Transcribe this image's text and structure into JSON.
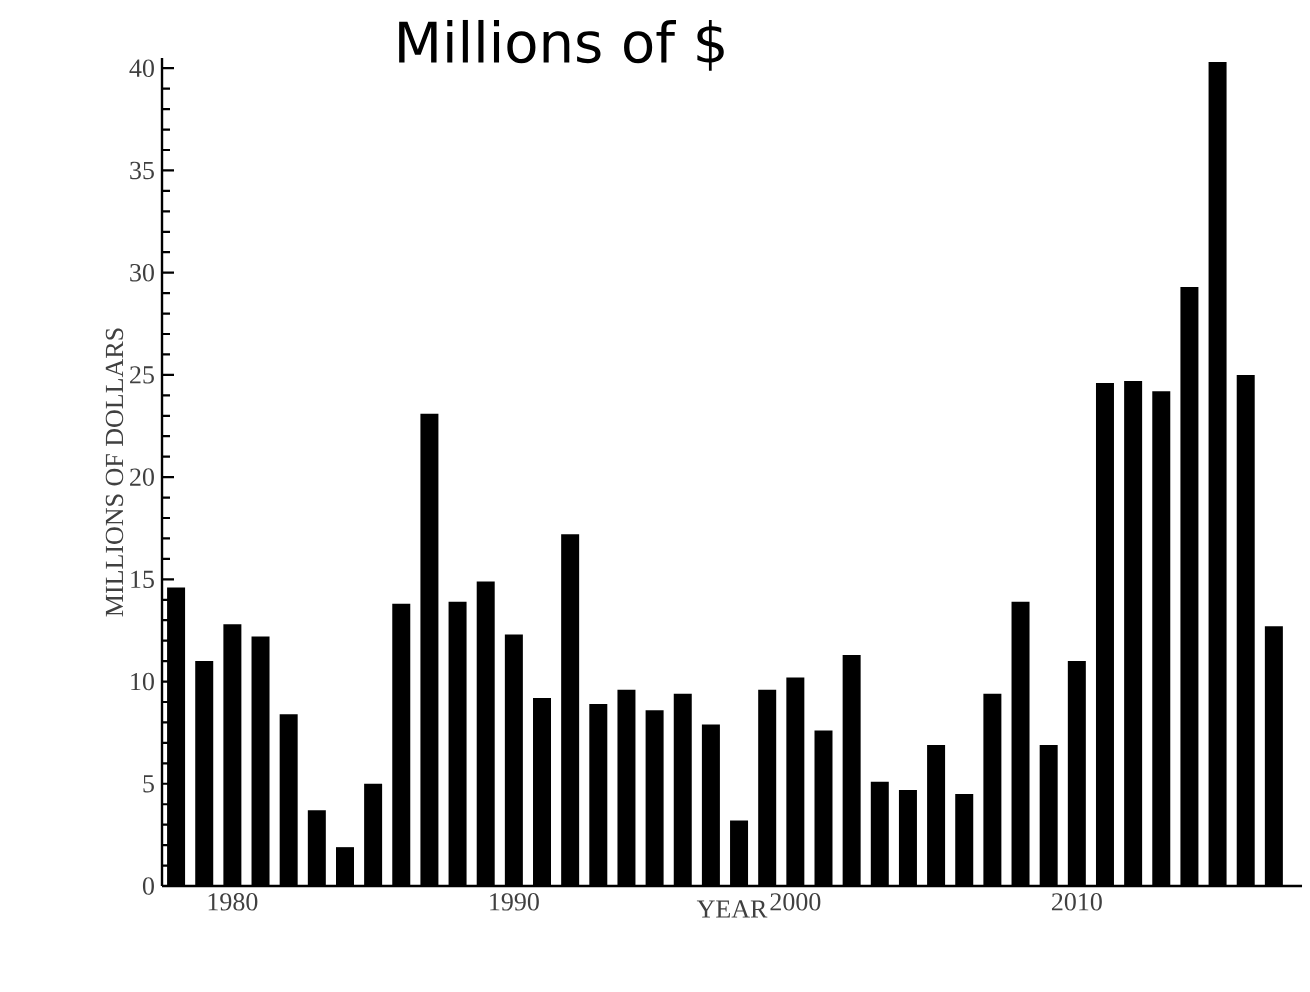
{
  "chart_data": {
    "type": "bar",
    "title": "Millions of $",
    "xlabel": "YEAR",
    "ylabel": "MILLIONS OF DOLLARS",
    "x": [
      1978,
      1979,
      1980,
      1981,
      1982,
      1983,
      1984,
      1985,
      1986,
      1987,
      1988,
      1989,
      1990,
      1991,
      1992,
      1993,
      1994,
      1995,
      1996,
      1997,
      1998,
      1999,
      2000,
      2001,
      2002,
      2003,
      2004,
      2005,
      2006,
      2007,
      2008,
      2009,
      2010,
      2011,
      2012,
      2013,
      2014,
      2015,
      2016,
      2017
    ],
    "values": [
      14.6,
      11.0,
      12.8,
      12.2,
      8.4,
      3.7,
      1.9,
      5.0,
      13.8,
      23.1,
      13.9,
      14.9,
      12.3,
      9.2,
      17.2,
      8.9,
      9.6,
      8.6,
      9.4,
      7.9,
      3.2,
      9.6,
      10.2,
      7.6,
      11.3,
      5.1,
      4.7,
      6.9,
      4.5,
      9.4,
      13.9,
      6.9,
      11.0,
      24.6,
      24.7,
      24.2,
      29.3,
      40.3,
      25.0,
      12.7
    ],
    "color": "#000000",
    "xlim": [
      1977.5,
      2018
    ],
    "xticks": [
      1980,
      1990,
      2000,
      2010
    ],
    "ylim": [
      0,
      40.5
    ],
    "yticks": [
      0,
      5,
      10,
      15,
      20,
      25,
      30,
      35,
      40
    ],
    "grid": false
  }
}
